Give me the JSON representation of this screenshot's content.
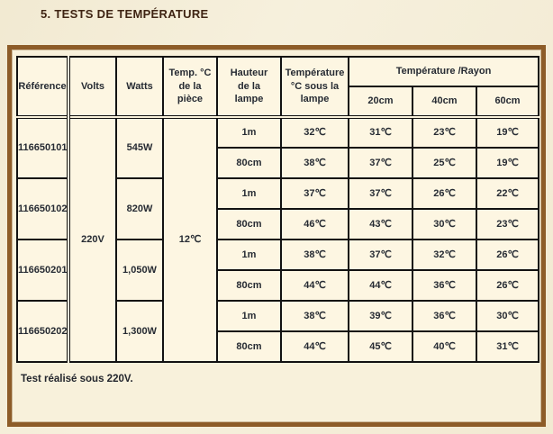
{
  "page": {
    "title": "5. TESTS DE TEMPÉRATURE",
    "footnote": "Test réalisé sous 220V."
  },
  "colors": {
    "frame_brown": "#8d5c28",
    "page_beige": "#f5eed8",
    "cell_cream": "#fdf6e2",
    "value_blue": "#2a4778",
    "value_orange": "#f7941e",
    "title_maroon": "#3f2413"
  },
  "table": {
    "headers": {
      "reference": "Référence",
      "volts": "Volts",
      "watts": "Watts",
      "room_temp": "Temp. °C\nde la\npièce",
      "lamp_height": "Hauteur\nde la\nlampe",
      "temp_under_lamp": "Température\n°C sous la\nlampe",
      "temp_by_radius": "Température /Rayon",
      "radius_cols": [
        "20cm",
        "40cm",
        "60cm"
      ]
    },
    "volts_value": "220V",
    "room_temp_value": "12℃",
    "groups": [
      {
        "reference": "116650101",
        "watts": "545W",
        "rows": [
          {
            "height": "1m",
            "under_lamp": "32℃",
            "r20": "31℃",
            "r40": "23℃",
            "r60": "19℃",
            "variant": "blue"
          },
          {
            "height": "80cm",
            "under_lamp": "38℃",
            "r20": "37℃",
            "r40": "25℃",
            "r60": "19℃",
            "variant": "orange"
          }
        ]
      },
      {
        "reference": "116650102",
        "watts": "820W",
        "rows": [
          {
            "height": "1m",
            "under_lamp": "37℃",
            "r20": "37℃",
            "r40": "26℃",
            "r60": "22℃",
            "variant": "blue"
          },
          {
            "height": "80cm",
            "under_lamp": "46℃",
            "r20": "43℃",
            "r40": "30℃",
            "r60": "23℃",
            "variant": "orange"
          }
        ]
      },
      {
        "reference": "116650201",
        "watts": "1,050W",
        "rows": [
          {
            "height": "1m",
            "under_lamp": "38℃",
            "r20": "37℃",
            "r40": "32℃",
            "r60": "26℃",
            "variant": "blue"
          },
          {
            "height": "80cm",
            "under_lamp": "44℃",
            "r20": "44℃",
            "r40": "36℃",
            "r60": "26℃",
            "variant": "orange"
          }
        ]
      },
      {
        "reference": "116650202",
        "watts": "1,300W",
        "rows": [
          {
            "height": "1m",
            "under_lamp": "38℃",
            "r20": "39℃",
            "r40": "36℃",
            "r60": "30℃",
            "variant": "blue"
          },
          {
            "height": "80cm",
            "under_lamp": "44℃",
            "r20": "45℃",
            "r40": "40℃",
            "r60": "31℃",
            "variant": "orange"
          }
        ]
      }
    ]
  }
}
